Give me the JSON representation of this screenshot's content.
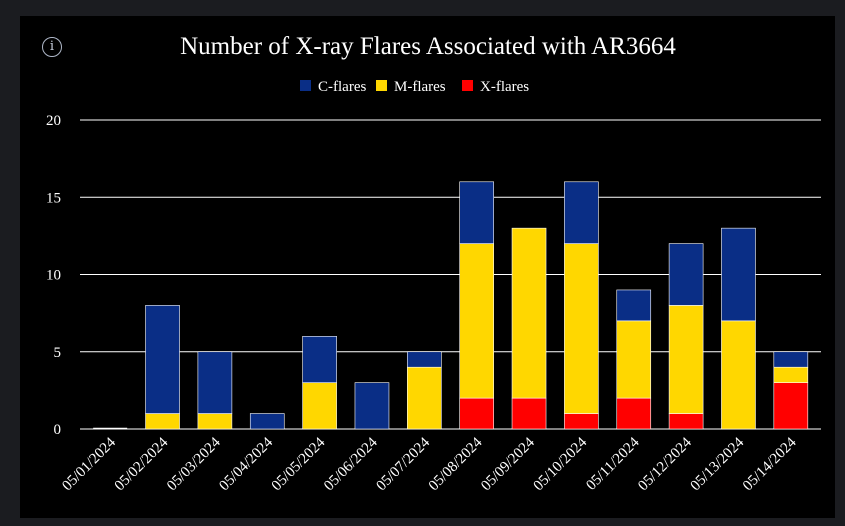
{
  "info_icon": {
    "name": "info-icon",
    "glyph": "i"
  },
  "chart_data": {
    "type": "bar",
    "stacked": true,
    "title": "Number of X-ray Flares Associated with AR3664",
    "xlabel": "",
    "ylabel": "",
    "ylim": [
      0,
      20
    ],
    "yticks": [
      "0",
      "5",
      "10",
      "15",
      "20"
    ],
    "grid": true,
    "legend_position": "top",
    "categories": [
      "05/01/2024",
      "05/02/2024",
      "05/03/2024",
      "05/04/2024",
      "05/05/2024",
      "05/06/2024",
      "05/07/2024",
      "05/08/2024",
      "05/09/2024",
      "05/10/2024",
      "05/11/2024",
      "05/12/2024",
      "05/13/2024",
      "05/14/2024"
    ],
    "series": [
      {
        "name": "X-flares",
        "color": "#ff0000",
        "values": [
          0,
          0,
          0,
          0,
          0,
          0,
          0,
          2,
          2,
          1,
          2,
          1,
          0,
          3
        ]
      },
      {
        "name": "M-flares",
        "color": "#ffd700",
        "values": [
          0,
          1,
          1,
          0,
          3,
          0,
          4,
          10,
          11,
          11,
          5,
          7,
          7,
          1
        ]
      },
      {
        "name": "C-flares",
        "color": "#0a2e86",
        "values": [
          0,
          7,
          4,
          1,
          3,
          3,
          1,
          4,
          0,
          4,
          2,
          4,
          6,
          1
        ]
      }
    ],
    "legend": [
      "C-flares",
      "M-flares",
      "X-flares"
    ]
  }
}
